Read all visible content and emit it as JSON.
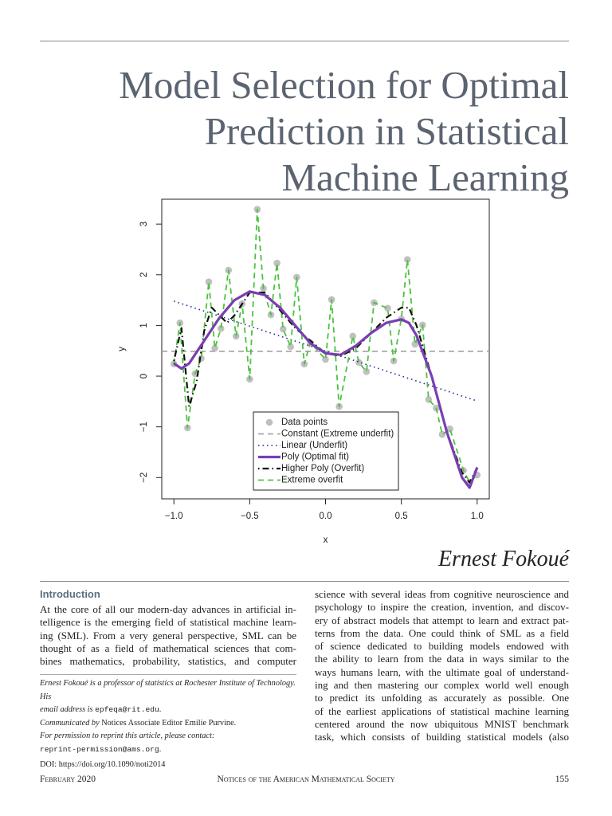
{
  "header": {
    "title_lines": [
      "Model Selection for Optimal",
      "Prediction in Statistical",
      "Machine Learning"
    ]
  },
  "chart_data": {
    "type": "line",
    "xlabel": "x",
    "ylabel": "y",
    "xlim": [
      -1.08,
      1.08
    ],
    "ylim": [
      -2.42,
      3.49
    ],
    "xticks": [
      {
        "value": -1,
        "label": "−1.0"
      },
      {
        "value": -0.5,
        "label": "−0.5"
      },
      {
        "value": 0,
        "label": "0.0"
      },
      {
        "value": 0.5,
        "label": "0.5"
      },
      {
        "value": 1,
        "label": "1.0"
      }
    ],
    "yticks": [
      {
        "value": -2,
        "label": "−2"
      },
      {
        "value": -1,
        "label": "−1"
      },
      0,
      1,
      2,
      3
    ],
    "legend": "bottom-center",
    "series": [
      {
        "name": "Data points",
        "color": "#c0c0c0",
        "style": "points",
        "x": [
          -1.0,
          -0.96,
          -0.91,
          -0.86,
          -0.82,
          -0.77,
          -0.73,
          -0.69,
          -0.64,
          -0.59,
          -0.55,
          -0.5,
          -0.45,
          -0.41,
          -0.36,
          -0.32,
          -0.28,
          -0.23,
          -0.19,
          -0.14,
          -0.1,
          0.0,
          0.04,
          0.09,
          0.18,
          0.22,
          0.27,
          0.32,
          0.41,
          0.45,
          0.5,
          0.54,
          0.59,
          0.64,
          0.68,
          0.73,
          0.77,
          0.82,
          0.91,
          0.95,
          1.0
        ],
        "values": [
          0.24,
          1.05,
          -1.02,
          0.05,
          0.35,
          1.86,
          0.55,
          0.94,
          2.09,
          0.79,
          1.43,
          -0.06,
          3.29,
          1.73,
          1.21,
          2.23,
          0.93,
          0.58,
          1.95,
          0.24,
          0.66,
          0.33,
          1.51,
          -0.6,
          0.79,
          0.27,
          0.09,
          1.45,
          1.34,
          0.3,
          1.13,
          2.3,
          0.63,
          1.01,
          -0.46,
          -0.63,
          -1.15,
          -1.04,
          -1.86,
          -2.09,
          -1.95
        ]
      },
      {
        "name": "Constant (Extreme underfit)",
        "color": "#a8a8a8",
        "style": "dashed",
        "x": [
          -1.08,
          1.08
        ],
        "values": [
          0.49,
          0.49
        ]
      },
      {
        "name": "Linear (Underfit)",
        "color": "#23239a",
        "style": "dotted",
        "x": [
          -1,
          1
        ],
        "values": [
          1.48,
          -0.49
        ]
      },
      {
        "name": "Poly (Optimal fit)",
        "color": "#7b3db3",
        "style": "solid",
        "x": [
          -1,
          -0.95,
          -0.9,
          -0.8,
          -0.7,
          -0.6,
          -0.5,
          -0.4,
          -0.3,
          -0.2,
          -0.1,
          0,
          0.1,
          0.2,
          0.3,
          0.4,
          0.5,
          0.55,
          0.6,
          0.7,
          0.8,
          0.9,
          0.95,
          1
        ],
        "values": [
          0.25,
          0.15,
          0.25,
          0.7,
          1.15,
          1.5,
          1.67,
          1.6,
          1.35,
          1.0,
          0.65,
          0.45,
          0.42,
          0.6,
          0.85,
          1.05,
          1.12,
          1.05,
          0.8,
          0.0,
          -1.1,
          -2.0,
          -2.2,
          -1.8
        ]
      },
      {
        "name": "Higher Poly (Overfit)",
        "color": "#111111",
        "style": "dotdash",
        "x": [
          -1,
          -0.95,
          -0.9,
          -0.85,
          -0.8,
          -0.75,
          -0.7,
          -0.65,
          -0.6,
          -0.5,
          -0.4,
          -0.3,
          -0.2,
          -0.1,
          0,
          0.1,
          0.2,
          0.3,
          0.4,
          0.5,
          0.55,
          0.6,
          0.7,
          0.8,
          0.9,
          0.95,
          1
        ],
        "values": [
          0.3,
          0.95,
          -0.6,
          -0.1,
          0.9,
          1.35,
          1.2,
          1.05,
          1.2,
          1.65,
          1.65,
          1.3,
          0.95,
          0.7,
          0.45,
          0.4,
          0.55,
          0.85,
          1.15,
          1.35,
          1.35,
          1.0,
          0.0,
          -1.1,
          -1.9,
          -2.1,
          -1.8
        ]
      },
      {
        "name": "Extreme overfit",
        "color": "#4cc23f",
        "style": "dashed",
        "x": [
          -1.0,
          -0.96,
          -0.91,
          -0.86,
          -0.82,
          -0.77,
          -0.73,
          -0.69,
          -0.64,
          -0.59,
          -0.55,
          -0.5,
          -0.45,
          -0.41,
          -0.36,
          -0.32,
          -0.28,
          -0.23,
          -0.19,
          -0.14,
          -0.1,
          0.0,
          0.04,
          0.09,
          0.18,
          0.22,
          0.27,
          0.32,
          0.41,
          0.45,
          0.5,
          0.54,
          0.59,
          0.64,
          0.68,
          0.73,
          0.77,
          0.82,
          0.91,
          0.95,
          1.0
        ],
        "values": [
          0.24,
          1.05,
          -1.02,
          0.05,
          0.35,
          1.86,
          0.55,
          0.94,
          2.09,
          0.79,
          1.43,
          -0.06,
          3.29,
          1.73,
          1.21,
          2.23,
          0.93,
          0.58,
          1.95,
          0.24,
          0.66,
          0.33,
          1.51,
          -0.6,
          0.79,
          0.27,
          0.09,
          1.45,
          1.34,
          0.3,
          1.13,
          2.3,
          0.63,
          1.01,
          -0.46,
          -0.63,
          -1.15,
          -1.04,
          -1.86,
          -2.09,
          -1.95
        ]
      }
    ]
  },
  "author": "Ernest Fokoué",
  "section": {
    "heading": "Introduction",
    "left_lines": [
      "At the core of all our modern-day advances in artificial in-",
      "telligence is the emerging field of statistical machine learn-",
      "ing (SML). From a very general perspective, SML can be",
      "thought of as a field of mathematical sciences that com-",
      "bines mathematics, probability, statistics, and computer"
    ],
    "right_lines": [
      "science with several ideas from cognitive neuroscience and",
      "psychology to inspire the creation, invention, and discov-",
      "ery of abstract models that attempt to learn and extract pat-",
      "terns from the data.  One could think of SML as a field",
      "of science dedicated to building models endowed with",
      "the ability to learn from the data in ways similar to the",
      "ways humans learn, with the ultimate goal of understand-",
      "ing and then mastering our complex world well enough",
      "to predict its unfolding as accurately as possible.  One",
      "of the earliest applications of statistical machine learning",
      "centered around the now ubiquitous MNIST benchmark",
      "task, which consists of building statistical models (also"
    ]
  },
  "footnote": [
    [
      {
        "text": "Ernest Fokoué is a professor of statistics at Rochester Institute of Technology. His",
        "style": "italic"
      }
    ],
    [
      {
        "text": "email address is ",
        "style": "italic"
      },
      {
        "text": "epfeqa@rit.edu",
        "style": "mono"
      },
      {
        "text": ".",
        "style": "roman"
      }
    ],
    [
      {
        "text": "Communicated by ",
        "style": "italic"
      },
      {
        "text": "Notices Associate Editor Emilie Purvine.",
        "style": "roman"
      }
    ],
    [
      {
        "text": "For permission to reprint this article, please contact:",
        "style": "italic"
      }
    ],
    [
      {
        "text": "reprint-permission@ams.org",
        "style": "mono"
      },
      {
        "text": ".",
        "style": "roman"
      }
    ],
    [
      {
        "text": "DOI: https://doi.org/10.1090/noti2014",
        "style": "roman"
      }
    ]
  ],
  "footer": {
    "left": "February 2020",
    "center": "Notices of the American Mathematical Society",
    "right": "155"
  }
}
